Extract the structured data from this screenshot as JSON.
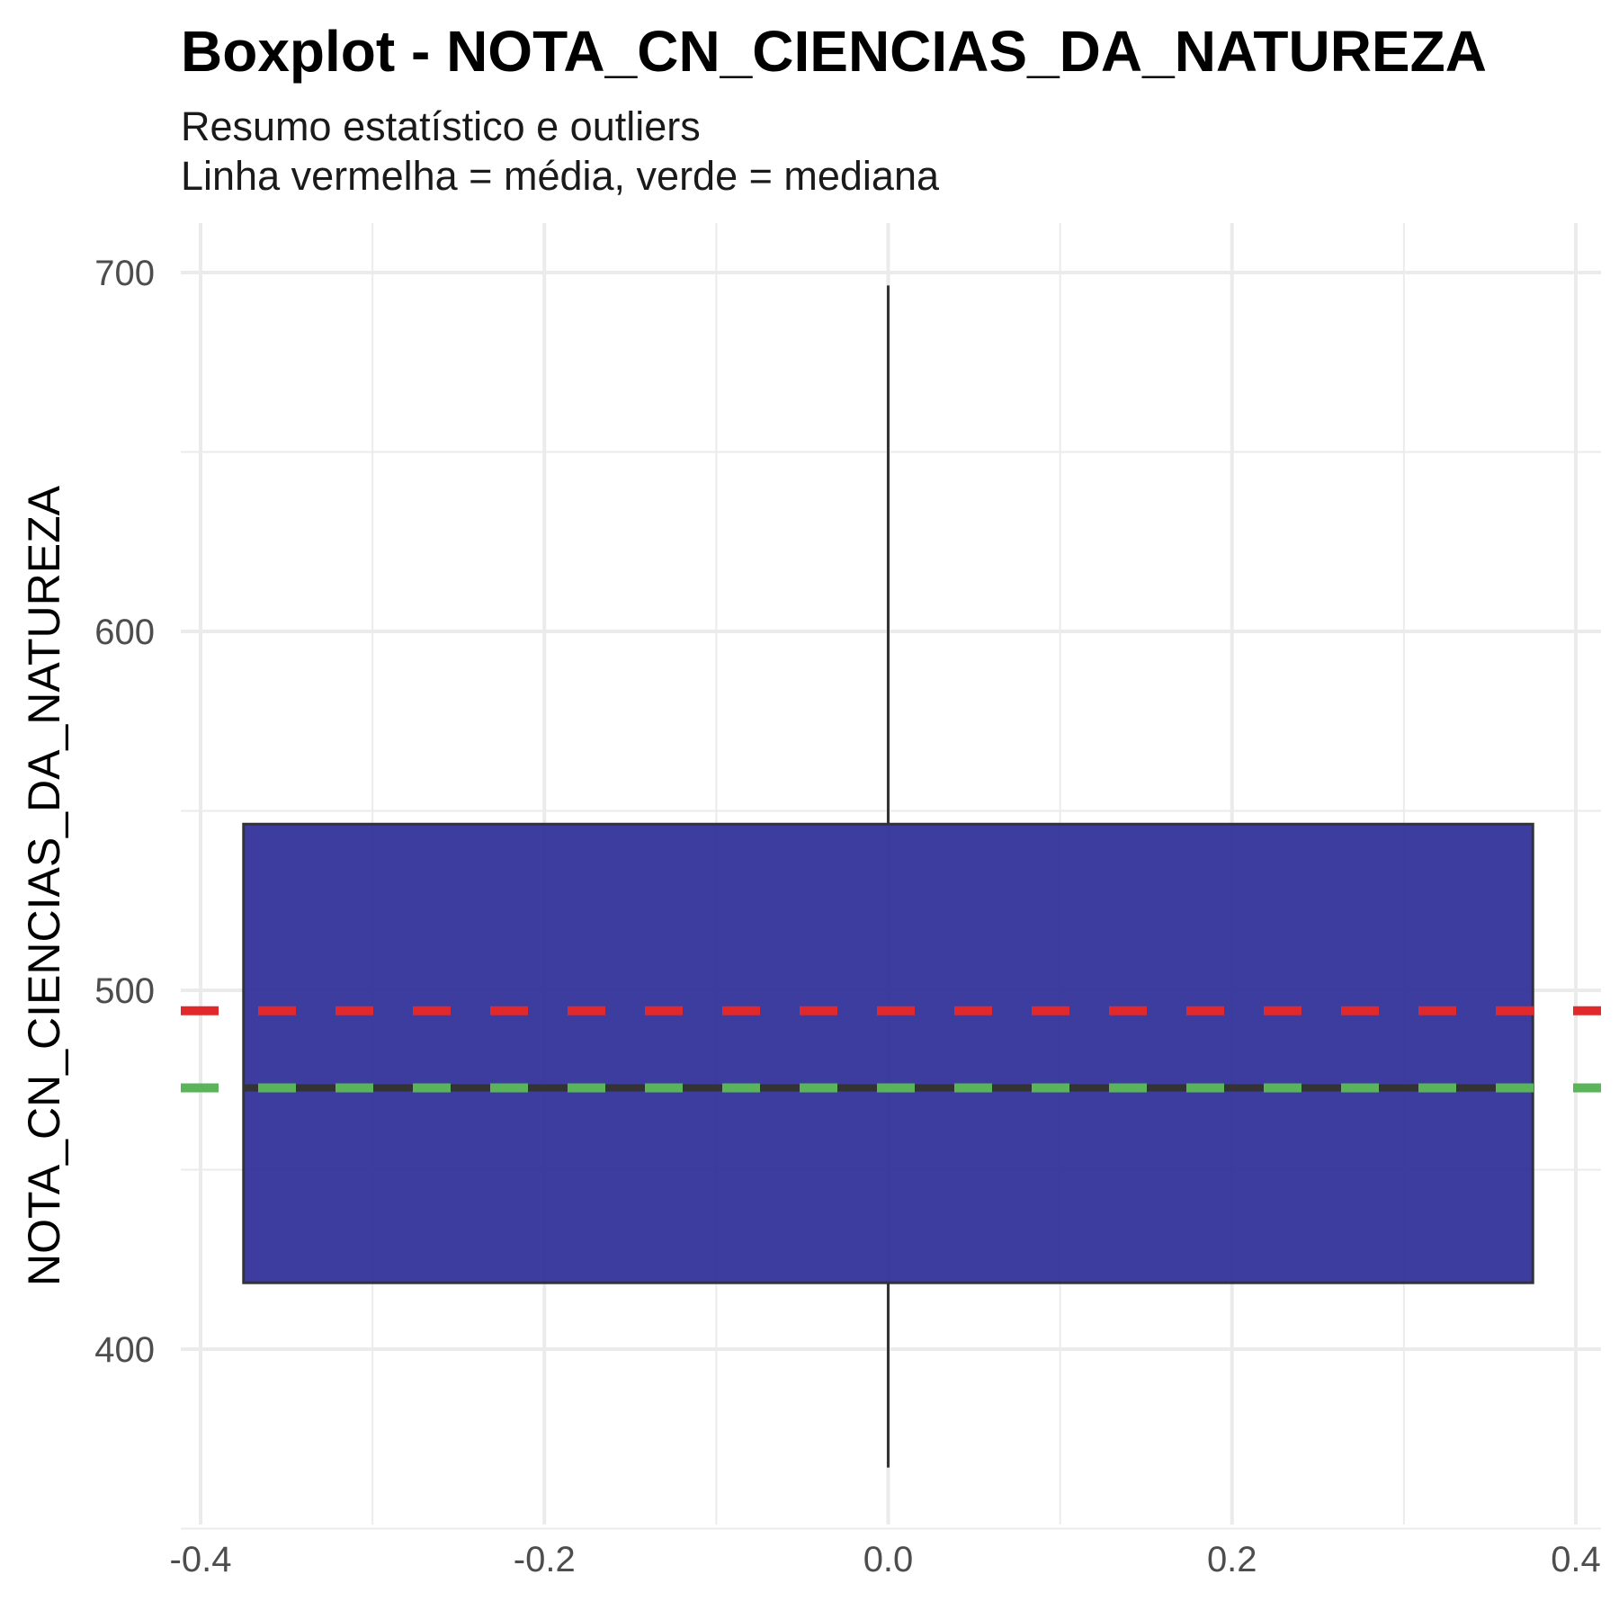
{
  "chart_data": {
    "type": "boxplot",
    "title": "Boxplot - NOTA_CN_CIENCIAS_DA_NATUREZA",
    "subtitle_lines": [
      "Resumo estatístico e outliers",
      "Linha vermelha = média, verde = mediana"
    ],
    "ylabel": "NOTA_CN_CIENCIAS_DA_NATUREZA",
    "xlabel": "",
    "xlim": [
      -0.4,
      0.4
    ],
    "ylim": [
      350,
      700
    ],
    "x_ticks": [
      -0.4,
      -0.2,
      0.0,
      0.2,
      0.4
    ],
    "x_tick_labels": [
      "-0.4",
      "-0.2",
      "0.0",
      "0.2",
      "0.4"
    ],
    "y_ticks": [
      400,
      500,
      600,
      700
    ],
    "y_tick_labels": [
      "400",
      "500",
      "600",
      "700"
    ],
    "grid": true,
    "box": {
      "x_center": 0.0,
      "x_left": -0.375,
      "x_right": 0.375,
      "q1": 418.5,
      "median": 472.8,
      "q3": 546.3,
      "whisker_low": 367.0,
      "whisker_high": 696.4,
      "fill": "#2b2d96",
      "edge": "#333333"
    },
    "reference_lines": [
      {
        "kind": "mean",
        "value": 494.3,
        "color": "#e1292b",
        "style": "dashed"
      },
      {
        "kind": "median",
        "value": 472.8,
        "color": "#5ab45a",
        "style": "dashed"
      }
    ]
  }
}
